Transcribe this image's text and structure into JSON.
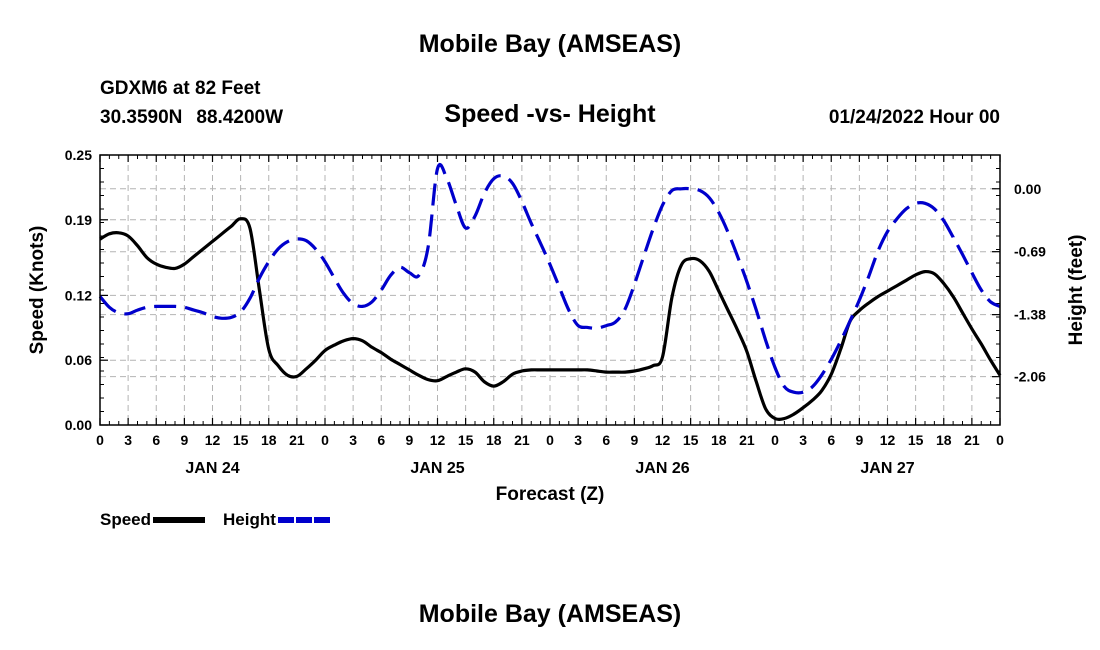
{
  "header": {
    "title": "Mobile Bay (AMSEAS)",
    "station": "GDXM6 at 82 Feet",
    "lat": "30.3590N",
    "lon": "88.4200W",
    "chart_title": "Speed -vs- Height",
    "datetime": "01/24/2022 Hour 00"
  },
  "footer": {
    "title": "Mobile Bay (AMSEAS)"
  },
  "legend": {
    "speed_label": "Speed",
    "height_label": "Height"
  },
  "colors": {
    "speed": "#000000",
    "height": "#0000cc",
    "grid": "#b4b4b4"
  },
  "chart_data": {
    "type": "line",
    "title": "Speed -vs- Height",
    "xlabel": "Forecast (Z)",
    "ylabel": "Speed (Knots)",
    "y2label": "Height (feet)",
    "xlim": [
      0,
      96
    ],
    "ylim": [
      0,
      0.25
    ],
    "y2lim": [
      -2.59,
      0.37
    ],
    "x_tick_labels": [
      "0",
      "3",
      "6",
      "9",
      "12",
      "15",
      "18",
      "21",
      "0",
      "3",
      "6",
      "9",
      "12",
      "15",
      "18",
      "21",
      "0",
      "3",
      "6",
      "9",
      "12",
      "15",
      "18",
      "21",
      "0",
      "3",
      "6",
      "9",
      "12",
      "15",
      "18",
      "21",
      "0"
    ],
    "x_tick_hours": [
      0,
      3,
      6,
      9,
      12,
      15,
      18,
      21,
      24,
      27,
      30,
      33,
      36,
      39,
      42,
      45,
      48,
      51,
      54,
      57,
      60,
      63,
      66,
      69,
      72,
      75,
      78,
      81,
      84,
      87,
      90,
      93,
      96
    ],
    "date_labels": [
      {
        "hour": 12,
        "label": "JAN 24"
      },
      {
        "hour": 36,
        "label": "JAN 25"
      },
      {
        "hour": 60,
        "label": "JAN 26"
      },
      {
        "hour": 84,
        "label": "JAN 27"
      }
    ],
    "y_ticks": [
      0.0,
      0.06,
      0.12,
      0.19,
      0.25
    ],
    "y_tick_labels": [
      "0.00",
      "0.06",
      "0.12",
      "0.19",
      "0.25"
    ],
    "y2_ticks": [
      0.0,
      -0.69,
      -1.38,
      -2.06
    ],
    "y2_tick_labels": [
      "0.00",
      "-0.69",
      "-1.38",
      "-2.06"
    ],
    "series": [
      {
        "name": "Speed",
        "axis": "left",
        "style": "solid",
        "x": [
          0,
          1,
          2,
          3,
          4,
          5,
          6,
          7,
          8,
          9,
          10,
          11,
          12,
          13,
          14,
          15,
          16,
          17,
          18,
          19,
          20,
          21,
          22,
          23,
          24,
          25,
          26,
          27,
          28,
          29,
          30,
          31,
          32,
          33,
          34,
          35,
          36,
          37,
          38,
          39,
          40,
          41,
          42,
          43,
          44,
          45,
          46,
          47,
          48,
          49,
          50,
          51,
          52,
          53,
          54,
          55,
          56,
          57,
          58,
          59,
          60,
          61,
          62,
          63,
          64,
          65,
          66,
          67,
          68,
          69,
          70,
          71,
          72,
          73,
          74,
          75,
          76,
          77,
          78,
          79,
          80,
          81,
          82,
          83,
          84,
          85,
          86,
          87,
          88,
          89,
          90,
          91,
          92,
          93,
          94,
          95,
          96
        ],
        "values": [
          0.172,
          0.177,
          0.178,
          0.175,
          0.166,
          0.155,
          0.149,
          0.146,
          0.145,
          0.149,
          0.156,
          0.163,
          0.17,
          0.177,
          0.184,
          0.191,
          0.182,
          0.125,
          0.07,
          0.055,
          0.046,
          0.045,
          0.052,
          0.06,
          0.069,
          0.074,
          0.078,
          0.08,
          0.078,
          0.072,
          0.067,
          0.061,
          0.056,
          0.051,
          0.046,
          0.042,
          0.041,
          0.045,
          0.049,
          0.052,
          0.049,
          0.04,
          0.036,
          0.04,
          0.047,
          0.05,
          0.051,
          0.051,
          0.051,
          0.051,
          0.051,
          0.051,
          0.051,
          0.05,
          0.049,
          0.049,
          0.049,
          0.05,
          0.052,
          0.055,
          0.063,
          0.118,
          0.148,
          0.154,
          0.152,
          0.142,
          0.124,
          0.106,
          0.088,
          0.068,
          0.04,
          0.015,
          0.006,
          0.006,
          0.01,
          0.016,
          0.023,
          0.032,
          0.047,
          0.07,
          0.096,
          0.106,
          0.113,
          0.119,
          0.124,
          0.129,
          0.134,
          0.139,
          0.142,
          0.14,
          0.131,
          0.119,
          0.104,
          0.089,
          0.075,
          0.06,
          0.046
        ]
      },
      {
        "name": "Height",
        "axis": "right",
        "style": "dashed",
        "x": [
          0,
          1,
          2,
          3,
          4,
          5,
          6,
          7,
          8,
          9,
          10,
          11,
          12,
          13,
          14,
          15,
          16,
          17,
          18,
          19,
          20,
          21,
          22,
          23,
          24,
          25,
          26,
          27,
          28,
          29,
          30,
          31,
          32,
          33,
          34,
          35,
          36,
          37,
          38,
          39,
          40,
          41,
          42,
          43,
          44,
          45,
          46,
          47,
          48,
          49,
          50,
          51,
          52,
          53,
          54,
          55,
          56,
          57,
          58,
          59,
          60,
          61,
          62,
          63,
          64,
          65,
          66,
          67,
          68,
          69,
          70,
          71,
          72,
          73,
          74,
          75,
          76,
          77,
          78,
          79,
          80,
          81,
          82,
          83,
          84,
          85,
          86,
          87,
          88,
          89,
          90,
          91,
          92,
          93,
          94,
          95,
          96
        ],
        "values": [
          -1.18,
          -1.3,
          -1.36,
          -1.37,
          -1.33,
          -1.3,
          -1.29,
          -1.29,
          -1.29,
          -1.3,
          -1.33,
          -1.36,
          -1.4,
          -1.42,
          -1.41,
          -1.35,
          -1.2,
          -0.98,
          -0.8,
          -0.66,
          -0.58,
          -0.55,
          -0.57,
          -0.66,
          -0.8,
          -0.98,
          -1.15,
          -1.26,
          -1.29,
          -1.24,
          -1.11,
          -0.95,
          -0.86,
          -0.92,
          -0.95,
          -0.64,
          0.22,
          0.11,
          -0.18,
          -0.43,
          -0.3,
          -0.05,
          0.11,
          0.14,
          0.06,
          -0.14,
          -0.38,
          -0.6,
          -0.83,
          -1.08,
          -1.33,
          -1.5,
          -1.52,
          -1.53,
          -1.5,
          -1.46,
          -1.32,
          -1.05,
          -0.74,
          -0.44,
          -0.18,
          -0.02,
          0.0,
          0.0,
          -0.02,
          -0.1,
          -0.26,
          -0.48,
          -0.74,
          -1.02,
          -1.33,
          -1.66,
          -1.96,
          -2.17,
          -2.23,
          -2.23,
          -2.17,
          -2.04,
          -1.87,
          -1.67,
          -1.45,
          -1.22,
          -0.96,
          -0.68,
          -0.47,
          -0.33,
          -0.22,
          -0.16,
          -0.16,
          -0.22,
          -0.35,
          -0.53,
          -0.72,
          -0.92,
          -1.11,
          -1.24,
          -1.29
        ]
      }
    ]
  }
}
